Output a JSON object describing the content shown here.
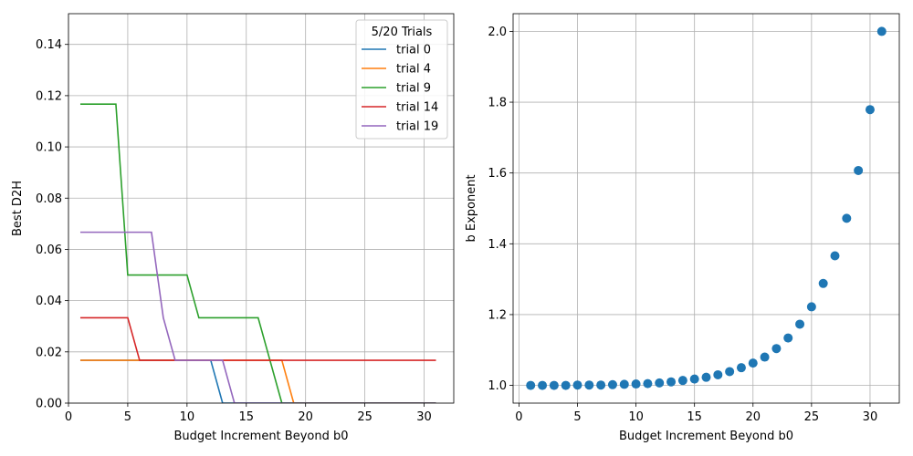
{
  "chart_data": [
    {
      "type": "line",
      "xlabel": "Budget Increment Beyond b0",
      "ylabel": "Best D2H",
      "xlim": [
        0,
        32.5
      ],
      "ylim": [
        0,
        0.152
      ],
      "xticks": [
        0,
        5,
        10,
        15,
        20,
        25,
        30
      ],
      "yticks": [
        0.0,
        0.02,
        0.04,
        0.06,
        0.08,
        0.1,
        0.12,
        0.14
      ],
      "grid": true,
      "legend": {
        "title": "5/20 Trials",
        "placement": "top-right"
      },
      "series": [
        {
          "name": "trial 0",
          "color": "#1f77b4",
          "x": [
            1,
            12,
            13,
            31
          ],
          "y": [
            0.0167,
            0.0167,
            0.0,
            0.0
          ]
        },
        {
          "name": "trial 4",
          "color": "#ff7f0e",
          "x": [
            1,
            18,
            19,
            31
          ],
          "y": [
            0.0167,
            0.0167,
            0.0,
            0.0
          ]
        },
        {
          "name": "trial 9",
          "color": "#2ca02c",
          "x": [
            1,
            4,
            5,
            10,
            11,
            16,
            18,
            31
          ],
          "y": [
            0.1167,
            0.1167,
            0.05,
            0.05,
            0.0333,
            0.0333,
            0.0,
            0.0
          ]
        },
        {
          "name": "trial 14",
          "color": "#d62728",
          "x": [
            1,
            5,
            6,
            31
          ],
          "y": [
            0.0333,
            0.0333,
            0.0167,
            0.0167
          ]
        },
        {
          "name": "trial 19",
          "color": "#9467bd",
          "x": [
            1,
            7,
            8,
            9,
            13,
            14,
            31
          ],
          "y": [
            0.0667,
            0.0667,
            0.0333,
            0.0167,
            0.0167,
            0.0,
            0.0
          ]
        }
      ]
    },
    {
      "type": "scatter",
      "xlabel": "Budget Increment Beyond b0",
      "ylabel": "b Exponent",
      "xlim": [
        -0.5,
        32.5
      ],
      "ylim": [
        0.95,
        2.05
      ],
      "xticks": [
        0,
        5,
        10,
        15,
        20,
        25,
        30
      ],
      "yticks": [
        1.0,
        1.2,
        1.4,
        1.6,
        1.8,
        2.0
      ],
      "grid": true,
      "color": "#1f77b4",
      "x": [
        1,
        2,
        3,
        4,
        5,
        6,
        7,
        8,
        9,
        10,
        11,
        12,
        13,
        14,
        15,
        16,
        17,
        18,
        19,
        20,
        21,
        22,
        23,
        24,
        25,
        26,
        27,
        28,
        29,
        30,
        31
      ],
      "y": [
        1.0,
        1.0,
        1.0,
        1.0,
        1.001,
        1.001,
        1.001,
        1.002,
        1.003,
        1.004,
        1.005,
        1.007,
        1.01,
        1.014,
        1.018,
        1.023,
        1.03,
        1.039,
        1.05,
        1.063,
        1.08,
        1.104,
        1.134,
        1.173,
        1.222,
        1.288,
        1.366,
        1.472,
        1.607,
        1.779,
        2.0
      ]
    }
  ]
}
